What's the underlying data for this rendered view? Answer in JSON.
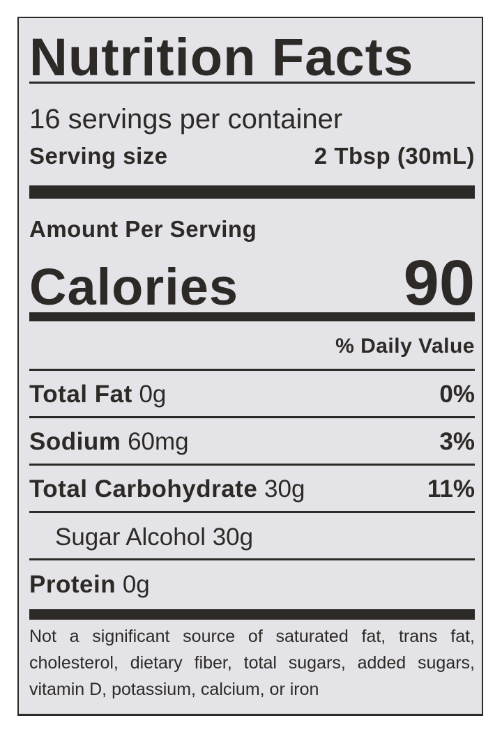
{
  "title": "Nutrition Facts",
  "servings_per_container": "16 servings per container",
  "serving_size": {
    "label": "Serving size",
    "value": "2 Tbsp (30mL)"
  },
  "amount_per_serving": "Amount Per Serving",
  "calories": {
    "label": "Calories",
    "value": "90"
  },
  "daily_value_header": "% Daily Value",
  "nutrients": [
    {
      "name": "Total Fat",
      "amount": "0g",
      "dv": "0%"
    },
    {
      "name": "Sodium",
      "amount": "60mg",
      "dv": "3%"
    },
    {
      "name": "Total Carbohydrate",
      "amount": "30g",
      "dv": "11%"
    },
    {
      "name": "Sugar Alcohol 30g"
    },
    {
      "name": "Protein",
      "amount": "0g"
    }
  ],
  "footnote": "Not a significant source of saturated fat, trans fat, cholesterol, dietary fiber, total sugars, added sugars, vitamin D, potassium, calcium, or iron"
}
